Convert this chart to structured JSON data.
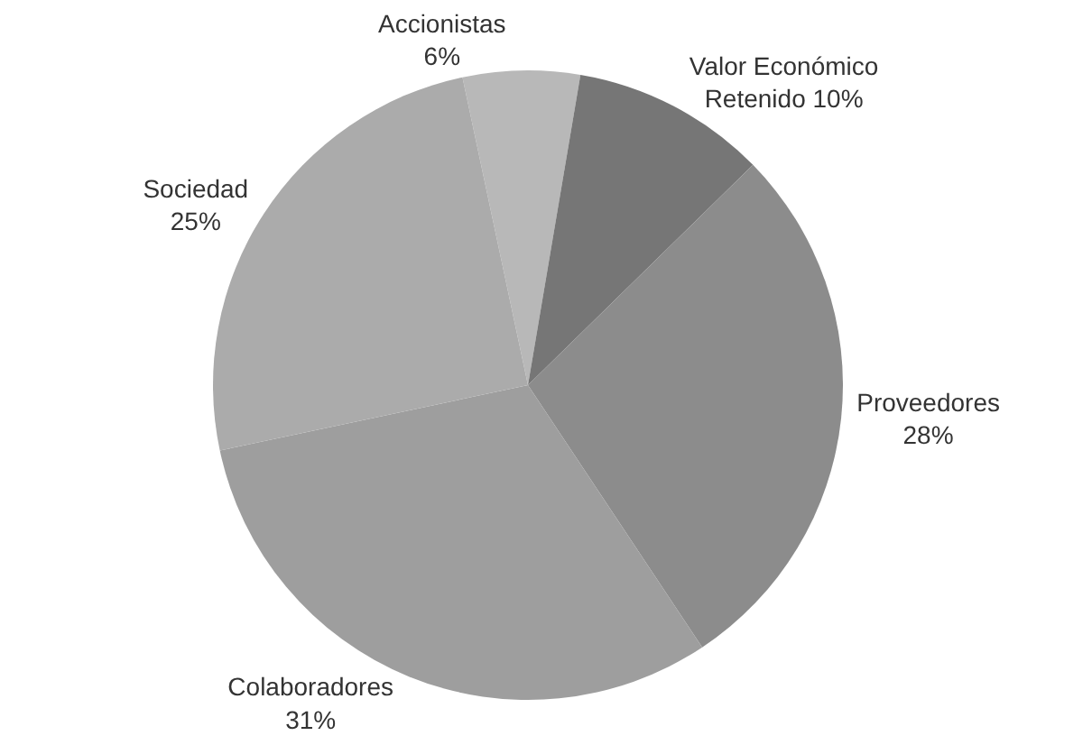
{
  "chart_data": {
    "type": "pie",
    "categories": [
      "Accionistas",
      "Valor Económico Retenido",
      "Proveedores",
      "Colaboradores",
      "Sociedad"
    ],
    "values": [
      6,
      10,
      28,
      31,
      25
    ],
    "value_labels": [
      "6%",
      "10%",
      "28%",
      "31%",
      "25%"
    ],
    "colors": [
      "#b8b8b8",
      "#767676",
      "#8c8c8c",
      "#9e9e9e",
      "#ababab"
    ],
    "legend": false
  }
}
